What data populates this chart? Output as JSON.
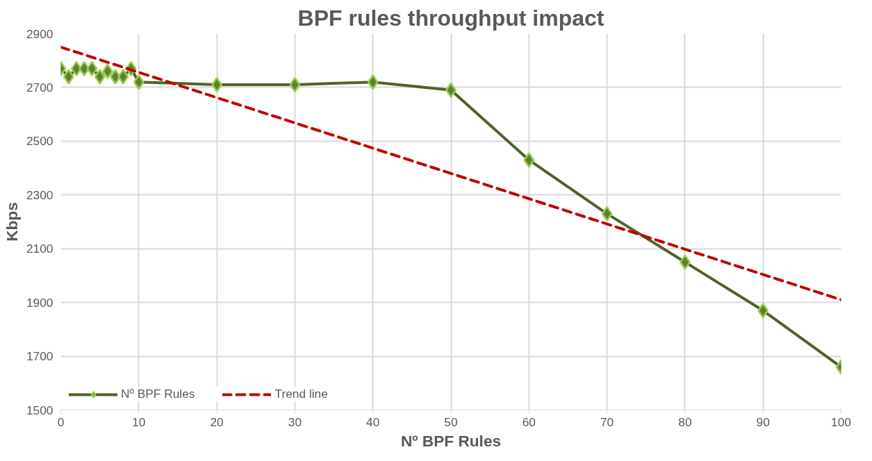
{
  "chart_data": {
    "type": "line",
    "title": "BPF rules throughput impact",
    "xlabel": "Nº BPF Rules",
    "ylabel": "Kbps",
    "xlim": [
      0,
      100
    ],
    "xticks": [
      0,
      10,
      20,
      30,
      40,
      50,
      60,
      70,
      80,
      90,
      100
    ],
    "ylim": [
      1500,
      2900
    ],
    "yticks": [
      1500,
      1700,
      1900,
      2100,
      2300,
      2500,
      2700,
      2900
    ],
    "grid": true,
    "legend": "bottom",
    "series": [
      {
        "name": "Nº BPF Rules",
        "color": "#4f6228",
        "marker": "diamond",
        "line_style": "solid",
        "x": [
          0,
          1,
          2,
          3,
          4,
          5,
          6,
          7,
          8,
          9,
          10,
          20,
          30,
          40,
          50,
          60,
          70,
          80,
          90,
          100
        ],
        "values": [
          2770,
          2740,
          2770,
          2770,
          2770,
          2740,
          2760,
          2740,
          2740,
          2770,
          2720,
          2710,
          2710,
          2720,
          2690,
          2430,
          2230,
          2050,
          1870,
          1660
        ]
      },
      {
        "name": "Trend line",
        "color": "#c00000",
        "marker": "none",
        "line_style": "dashed",
        "x": [
          0,
          100
        ],
        "values": [
          2850,
          1910
        ]
      }
    ]
  }
}
